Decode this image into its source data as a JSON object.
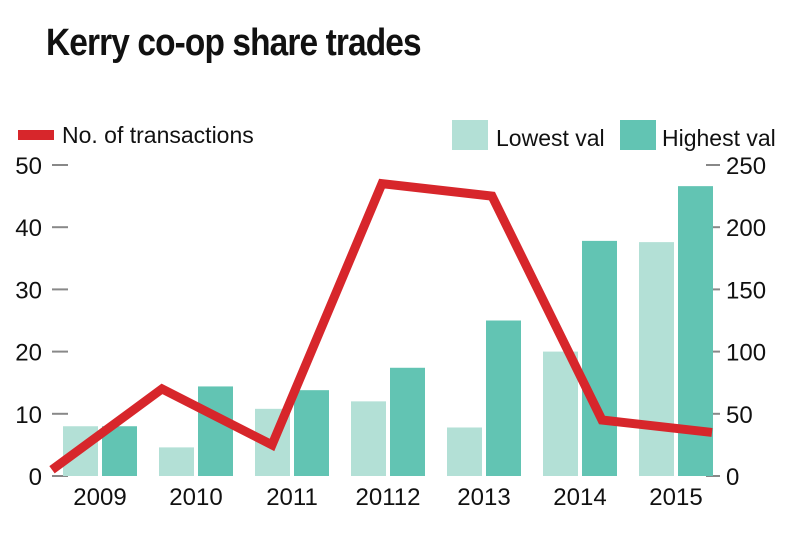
{
  "chart_data": {
    "type": "bar",
    "title": "Kerry co-op share trades",
    "categories": [
      "2009",
      "2010",
      "2011",
      "20112",
      "2013",
      "2014",
      "2015"
    ],
    "series": [
      {
        "name": "Lowest val",
        "type": "bar",
        "axis": "right",
        "color": "#b3e0d6",
        "values": [
          40,
          23,
          54,
          60,
          39,
          100,
          188
        ]
      },
      {
        "name": "Highest val",
        "type": "bar",
        "axis": "right",
        "color": "#62c4b3",
        "values": [
          40,
          72,
          69,
          87,
          125,
          189,
          233
        ]
      },
      {
        "name": "No. of transactions",
        "type": "line",
        "axis": "left",
        "color": "#d7262b",
        "values": [
          1,
          14,
          5,
          47,
          45,
          9,
          7
        ]
      }
    ],
    "y_left": {
      "lim": [
        0,
        50
      ],
      "ticks": [
        0,
        10,
        20,
        30,
        40,
        50
      ]
    },
    "y_right": {
      "lim": [
        0,
        250
      ],
      "ticks": [
        0,
        50,
        100,
        150,
        200,
        250
      ]
    },
    "legend": "top",
    "grid": false
  }
}
